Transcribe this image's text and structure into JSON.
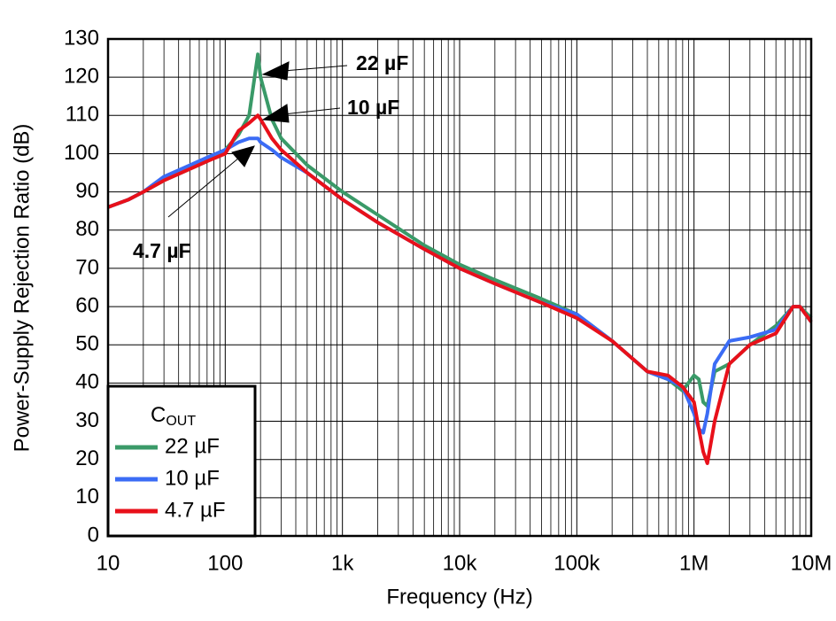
{
  "chart_data": {
    "type": "line",
    "x_label": "Frequency (Hz)",
    "y_label": "Power-Supply Rejection Ratio (dB)",
    "x_log": true,
    "grid": true,
    "legend_corner": "lower-left",
    "legend_title": {
      "main": "C",
      "sub": "OUT"
    },
    "xlim": [
      10,
      10000000
    ],
    "xticks": [
      10,
      100,
      {
        "value": 1000,
        "label": "1k"
      },
      {
        "value": 10000,
        "label": "10k"
      },
      {
        "value": 100000,
        "label": "100k"
      },
      {
        "value": 1000000,
        "label": "1M"
      },
      {
        "value": 10000000,
        "label": "10M"
      }
    ],
    "ylim": [
      0,
      130
    ],
    "yticks": [
      0,
      10,
      20,
      30,
      40,
      50,
      60,
      70,
      80,
      90,
      100,
      110,
      120,
      130
    ],
    "x": [
      10,
      15,
      20,
      30,
      50,
      70,
      100,
      130,
      160,
      190,
      200,
      250,
      300,
      500,
      1000,
      2000,
      5000,
      10000,
      20000,
      50000,
      100000,
      200000,
      400000,
      600000,
      800000,
      1000000,
      1100000,
      1200000,
      1300000,
      1500000,
      2000000,
      3000000,
      5000000,
      7000000,
      8000000,
      10000000
    ],
    "series": [
      {
        "name": "22 µF",
        "color": "#3a9a68",
        "values": [
          86,
          88,
          90,
          93,
          96,
          98,
          101,
          105,
          110,
          126,
          120,
          109,
          104,
          97,
          90,
          84,
          76,
          71,
          67,
          62,
          58,
          51,
          43,
          41,
          38,
          42,
          41,
          35,
          34,
          43,
          45,
          50,
          55,
          60,
          60,
          57
        ]
      },
      {
        "name": "10 µF",
        "color": "#3b6cf5",
        "values": [
          86,
          88,
          90,
          94,
          97,
          99,
          101,
          103,
          104,
          104,
          103,
          101,
          99,
          95,
          88,
          82,
          75,
          70,
          66,
          61,
          58,
          51,
          43,
          41,
          39,
          32,
          28,
          27,
          32,
          45,
          51,
          52,
          54,
          60,
          60,
          56
        ]
      },
      {
        "name": "4.7 µF",
        "color": "#e8101a",
        "values": [
          86,
          88,
          90,
          93,
          96,
          98,
          100,
          106,
          108,
          110,
          109,
          104,
          101,
          95,
          88,
          82,
          75,
          70,
          66,
          61,
          57,
          51,
          43,
          42,
          39,
          35,
          28,
          22,
          19,
          30,
          45,
          50,
          53,
          60,
          60,
          56
        ]
      }
    ],
    "annotations": [
      "22 µF",
      "10 µF",
      "4.7 µF"
    ]
  }
}
